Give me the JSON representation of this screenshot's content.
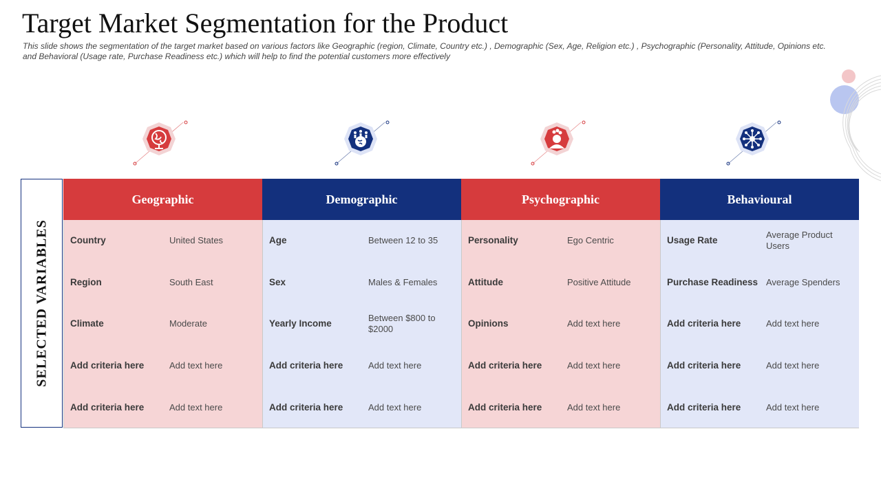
{
  "slide": {
    "title": "Target Market Segmentation for the Product",
    "subtitle": "This slide shows the segmentation of the target market based on various factors like Geographic (region, Climate, Country etc.) , Demographic (Sex, Age, Religion etc.) , Psychographic (Personality, Attitude, Opinions etc. and Behavioral (Usage rate, Purchase Readiness etc.) which will help to find the potential customers more effectively"
  },
  "sidebar": {
    "label": "SELECTED VARIABLES"
  },
  "colors": {
    "red": "#d63b3d",
    "navy": "#13307d",
    "red_light": "#f6d5d6",
    "blue_light": "#e2e7f8"
  },
  "columns": [
    {
      "header": "Geographic",
      "icon": "globe-icon",
      "rows": [
        {
          "criteria": "Country",
          "value": "United States"
        },
        {
          "criteria": "Region",
          "value": "South East"
        },
        {
          "criteria": "Climate",
          "value": "Moderate"
        },
        {
          "criteria": "Add criteria here",
          "value": "Add text here"
        },
        {
          "criteria": "Add criteria here",
          "value": "Add text here"
        }
      ]
    },
    {
      "header": "Demographic",
      "icon": "people-globe-icon",
      "rows": [
        {
          "criteria": "Age",
          "value": "Between 12 to 35"
        },
        {
          "criteria": "Sex",
          "value": "Males & Females"
        },
        {
          "criteria": "Yearly Income",
          "value": "Between $800 to $2000"
        },
        {
          "criteria": "Add criteria here",
          "value": "Add text here"
        },
        {
          "criteria": "Add criteria here",
          "value": "Add text here"
        }
      ]
    },
    {
      "header": "Psychographic",
      "icon": "person-mind-icon",
      "rows": [
        {
          "criteria": "Personality",
          "value": "Ego Centric"
        },
        {
          "criteria": "Attitude",
          "value": "Positive Attitude"
        },
        {
          "criteria": "Opinions",
          "value": "Add text here"
        },
        {
          "criteria": "Add criteria here",
          "value": "Add text here"
        },
        {
          "criteria": "Add criteria here",
          "value": "Add text here"
        }
      ]
    },
    {
      "header": "Behavioural",
      "icon": "behaviour-network-icon",
      "rows": [
        {
          "criteria": "Usage Rate",
          "value": "Average  Product Users"
        },
        {
          "criteria": "Purchase Readiness",
          "value": "Average  Spenders"
        },
        {
          "criteria": "Add criteria here",
          "value": "Add text here"
        },
        {
          "criteria": "Add criteria here",
          "value": "Add text here"
        },
        {
          "criteria": "Add criteria here",
          "value": "Add text here"
        }
      ]
    }
  ]
}
